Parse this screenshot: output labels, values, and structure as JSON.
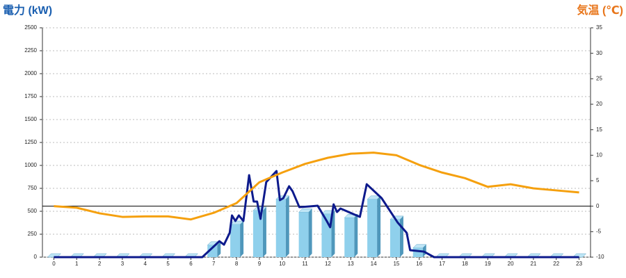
{
  "chart_data": {
    "type": "combo",
    "ylabel": "電力 (kW)",
    "y2label": "気温 (℃)",
    "categories": [
      "0",
      "1",
      "2",
      "3",
      "4",
      "5",
      "6",
      "7",
      "8",
      "9",
      "10",
      "11",
      "12",
      "13",
      "14",
      "15",
      "16",
      "17",
      "18",
      "19",
      "20",
      "21",
      "22",
      "23"
    ],
    "xlim": [
      -0.5,
      23.5
    ],
    "ylim": [
      0,
      2500
    ],
    "yticks": [
      0,
      250,
      500,
      750,
      1000,
      1250,
      1500,
      1750,
      2000,
      2250,
      2500
    ],
    "y2lim": [
      -10,
      35
    ],
    "y2ticks": [
      -10,
      -5,
      0,
      5,
      10,
      15,
      20,
      25,
      30,
      35
    ],
    "grid": true,
    "series": [
      {
        "type": "bar",
        "color": "#8fd0ec",
        "values": [
          0,
          0,
          0,
          0,
          0,
          0,
          0,
          130,
          356,
          508,
          630,
          490,
          470,
          430,
          630,
          410,
          100,
          0,
          0,
          0,
          0,
          0,
          0,
          0
        ]
      },
      {
        "type": "line",
        "color": "#0d1a8c",
        "x": [
          0,
          6.5,
          7.25,
          7.45,
          7.7,
          7.8,
          7.95,
          8.1,
          8.3,
          8.55,
          8.75,
          8.9,
          9.05,
          9.3,
          9.75,
          9.9,
          10.05,
          10.3,
          10.45,
          10.75,
          11.2,
          11.55,
          11.95,
          12.1,
          12.25,
          12.4,
          12.55,
          13.4,
          13.7,
          14.35,
          15.05,
          15.45,
          15.6,
          16.2,
          16.65,
          23
        ],
        "values": [
          0,
          0,
          174,
          136,
          265,
          455,
          394,
          455,
          394,
          894,
          606,
          606,
          417,
          818,
          939,
          621,
          644,
          773,
          720,
          545,
          553,
          561,
          394,
          326,
          576,
          492,
          530,
          439,
          795,
          644,
          379,
          265,
          76,
          61,
          0,
          0
        ]
      },
      {
        "type": "line",
        "axis": "y2",
        "color": "#f5a00e",
        "values": [
          0,
          -0.3,
          -1.4,
          -2.1,
          -2.0,
          -2.0,
          -2.6,
          -1.3,
          0.6,
          4.7,
          6.6,
          8.3,
          9.5,
          10.3,
          10.5,
          10.0,
          8.1,
          6.6,
          5.5,
          3.8,
          4.3,
          3.5,
          3.1,
          2.7
        ]
      }
    ]
  }
}
